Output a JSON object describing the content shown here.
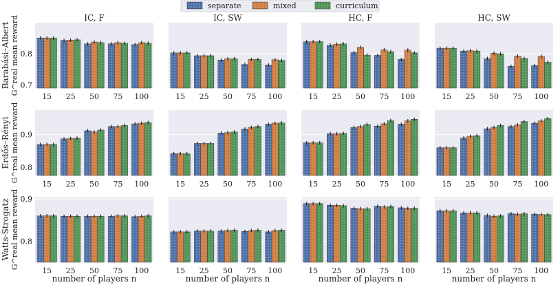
{
  "legend": {
    "entries": [
      {
        "name": "separate",
        "color": "#4c6fa8",
        "pattern": "dots-white"
      },
      {
        "name": "mixed",
        "color": "#d9884f",
        "pattern": "grid"
      },
      {
        "name": "curriculum",
        "color": "#5aa063",
        "pattern": "dots-dark"
      }
    ]
  },
  "chart_data": {
    "type": "bar",
    "categories": [
      "15",
      "25",
      "50",
      "75",
      "100"
    ],
    "xlabel": "number of players n",
    "columns": [
      "IC, F",
      "IC, SW",
      "HC, F",
      "HC, SW"
    ],
    "series_names": [
      "separate",
      "mixed",
      "curriculum"
    ],
    "rows": [
      {
        "label_top": "Barabási–Albert",
        "label_bottom": "G^real mean reward",
        "ylim": [
          0.69,
          0.9
        ],
        "yticks": [
          0.7,
          0.8
        ],
        "ytick_labels": [
          "0.7",
          "0.8"
        ],
        "panels": [
          [
            [
              0.851,
              0.851,
              0.851
            ],
            [
              0.843,
              0.844,
              0.845
            ],
            [
              0.832,
              0.838,
              0.836
            ],
            [
              0.832,
              0.836,
              0.834
            ],
            [
              0.83,
              0.836,
              0.834
            ]
          ],
          [
            [
              0.803,
              0.803,
              0.803
            ],
            [
              0.794,
              0.794,
              0.794
            ],
            [
              0.78,
              0.784,
              0.784
            ],
            [
              0.766,
              0.782,
              0.782
            ],
            [
              0.764,
              0.781,
              0.779
            ]
          ],
          [
            [
              0.839,
              0.839,
              0.839
            ],
            [
              0.828,
              0.831,
              0.832
            ],
            [
              0.804,
              0.821,
              0.796
            ],
            [
              0.795,
              0.813,
              0.807
            ],
            [
              0.782,
              0.812,
              0.803
            ]
          ],
          [
            [
              0.818,
              0.818,
              0.818
            ],
            [
              0.809,
              0.81,
              0.809
            ],
            [
              0.785,
              0.802,
              0.8
            ],
            [
              0.76,
              0.793,
              0.785
            ],
            [
              0.762,
              0.792,
              0.773
            ]
          ]
        ]
      },
      {
        "label_top": "Erdős–Rényi",
        "label_bottom": "G^real mean reward",
        "ylim": [
          0.775,
          0.975
        ],
        "yticks": [
          0.8,
          0.9
        ],
        "ytick_labels": [
          "0.8",
          "0.9"
        ],
        "panels": [
          [
            [
              0.87,
              0.87,
              0.87
            ],
            [
              0.887,
              0.888,
              0.889
            ],
            [
              0.912,
              0.908,
              0.914
            ],
            [
              0.925,
              0.925,
              0.928
            ],
            [
              0.933,
              0.935,
              0.937
            ]
          ],
          [
            [
              0.842,
              0.842,
              0.842
            ],
            [
              0.873,
              0.873,
              0.873
            ],
            [
              0.905,
              0.906,
              0.908
            ],
            [
              0.917,
              0.922,
              0.925
            ],
            [
              0.932,
              0.935,
              0.936
            ]
          ],
          [
            [
              0.875,
              0.875,
              0.875
            ],
            [
              0.903,
              0.903,
              0.904
            ],
            [
              0.922,
              0.925,
              0.931
            ],
            [
              0.926,
              0.933,
              0.943
            ],
            [
              0.932,
              0.942,
              0.947
            ]
          ],
          [
            [
              0.86,
              0.86,
              0.86
            ],
            [
              0.89,
              0.895,
              0.897
            ],
            [
              0.918,
              0.922,
              0.928
            ],
            [
              0.925,
              0.93,
              0.94
            ],
            [
              0.935,
              0.942,
              0.949
            ]
          ]
        ]
      },
      {
        "label_top": "Watts-Strogatz",
        "label_bottom": "G^real mean reward",
        "ylim": [
          0.75,
          0.905
        ],
        "yticks": [
          0.8,
          0.9
        ],
        "ytick_labels": [
          "0.8",
          "0.9"
        ],
        "panels": [
          [
            [
              0.86,
              0.86,
              0.86
            ],
            [
              0.859,
              0.859,
              0.859
            ],
            [
              0.859,
              0.859,
              0.859
            ],
            [
              0.859,
              0.86,
              0.86
            ],
            [
              0.858,
              0.859,
              0.86
            ]
          ],
          [
            [
              0.822,
              0.822,
              0.822
            ],
            [
              0.824,
              0.824,
              0.824
            ],
            [
              0.824,
              0.825,
              0.826
            ],
            [
              0.823,
              0.825,
              0.826
            ],
            [
              0.822,
              0.825,
              0.826
            ]
          ],
          [
            [
              0.889,
              0.889,
              0.889
            ],
            [
              0.885,
              0.885,
              0.884
            ],
            [
              0.878,
              0.877,
              0.877
            ],
            [
              0.883,
              0.881,
              0.882
            ],
            [
              0.879,
              0.878,
              0.878
            ]
          ],
          [
            [
              0.872,
              0.872,
              0.872
            ],
            [
              0.867,
              0.867,
              0.867
            ],
            [
              0.861,
              0.859,
              0.86
            ],
            [
              0.865,
              0.864,
              0.865
            ],
            [
              0.864,
              0.863,
              0.863
            ]
          ]
        ]
      }
    ]
  }
}
